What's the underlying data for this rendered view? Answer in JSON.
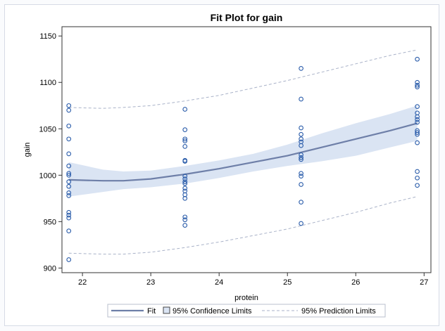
{
  "chart_data": {
    "type": "scatter",
    "title": "Fit Plot for gain",
    "xlabel": "protein",
    "ylabel": "gain",
    "xlim": [
      21.7,
      27.1
    ],
    "ylim": [
      895,
      1160
    ],
    "xticks": [
      22,
      23,
      24,
      25,
      26,
      27
    ],
    "yticks": [
      900,
      950,
      1000,
      1050,
      1100,
      1150
    ],
    "grid": false,
    "legend_position": "bottom",
    "colors": {
      "points": "#2a5caa",
      "fit": "#6e7fa8",
      "confidence_band": "#dae4f3",
      "prediction_limits": "#a9b2c8"
    },
    "points": [
      {
        "x": 21.8,
        "y": 1075
      },
      {
        "x": 21.8,
        "y": 1070
      },
      {
        "x": 21.8,
        "y": 1053
      },
      {
        "x": 21.8,
        "y": 1039
      },
      {
        "x": 21.8,
        "y": 1023
      },
      {
        "x": 21.8,
        "y": 1010
      },
      {
        "x": 21.8,
        "y": 1002
      },
      {
        "x": 21.8,
        "y": 1000
      },
      {
        "x": 21.8,
        "y": 993
      },
      {
        "x": 21.8,
        "y": 988
      },
      {
        "x": 21.8,
        "y": 981
      },
      {
        "x": 21.8,
        "y": 978
      },
      {
        "x": 21.8,
        "y": 960
      },
      {
        "x": 21.8,
        "y": 957
      },
      {
        "x": 21.8,
        "y": 954
      },
      {
        "x": 21.8,
        "y": 940
      },
      {
        "x": 21.8,
        "y": 909
      },
      {
        "x": 23.5,
        "y": 1071
      },
      {
        "x": 23.5,
        "y": 1049
      },
      {
        "x": 23.5,
        "y": 1039
      },
      {
        "x": 23.5,
        "y": 1037
      },
      {
        "x": 23.5,
        "y": 1031
      },
      {
        "x": 23.5,
        "y": 1016
      },
      {
        "x": 23.5,
        "y": 1015
      },
      {
        "x": 23.5,
        "y": 999
      },
      {
        "x": 23.5,
        "y": 996
      },
      {
        "x": 23.5,
        "y": 993
      },
      {
        "x": 23.5,
        "y": 991
      },
      {
        "x": 23.5,
        "y": 986
      },
      {
        "x": 23.5,
        "y": 983
      },
      {
        "x": 23.5,
        "y": 979
      },
      {
        "x": 23.5,
        "y": 975
      },
      {
        "x": 23.5,
        "y": 955
      },
      {
        "x": 23.5,
        "y": 952
      },
      {
        "x": 23.5,
        "y": 946
      },
      {
        "x": 25.2,
        "y": 1115
      },
      {
        "x": 25.2,
        "y": 1082
      },
      {
        "x": 25.2,
        "y": 1051
      },
      {
        "x": 25.2,
        "y": 1044
      },
      {
        "x": 25.2,
        "y": 1039
      },
      {
        "x": 25.2,
        "y": 1036
      },
      {
        "x": 25.2,
        "y": 1032
      },
      {
        "x": 25.2,
        "y": 1022
      },
      {
        "x": 25.2,
        "y": 1019
      },
      {
        "x": 25.2,
        "y": 1017
      },
      {
        "x": 25.2,
        "y": 1002
      },
      {
        "x": 25.2,
        "y": 999
      },
      {
        "x": 25.2,
        "y": 990
      },
      {
        "x": 25.2,
        "y": 971
      },
      {
        "x": 25.2,
        "y": 948
      },
      {
        "x": 26.9,
        "y": 1125
      },
      {
        "x": 26.9,
        "y": 1100
      },
      {
        "x": 26.9,
        "y": 1097
      },
      {
        "x": 26.9,
        "y": 1095
      },
      {
        "x": 26.9,
        "y": 1074
      },
      {
        "x": 26.9,
        "y": 1067
      },
      {
        "x": 26.9,
        "y": 1063
      },
      {
        "x": 26.9,
        "y": 1060
      },
      {
        "x": 26.9,
        "y": 1057
      },
      {
        "x": 26.9,
        "y": 1048
      },
      {
        "x": 26.9,
        "y": 1046
      },
      {
        "x": 26.9,
        "y": 1044
      },
      {
        "x": 26.9,
        "y": 1035
      },
      {
        "x": 26.9,
        "y": 1004
      },
      {
        "x": 26.9,
        "y": 997
      },
      {
        "x": 26.9,
        "y": 989
      }
    ],
    "fit": {
      "x": [
        21.8,
        22.3,
        22.6,
        23.0,
        23.5,
        24.0,
        24.5,
        25.0,
        25.5,
        26.0,
        26.5,
        26.9
      ],
      "y": [
        995,
        994,
        994,
        996,
        1001,
        1007,
        1014,
        1021,
        1030,
        1039,
        1048,
        1056
      ]
    },
    "confidence_band": {
      "x": [
        21.8,
        22.3,
        22.6,
        23.0,
        23.5,
        24.0,
        24.5,
        25.0,
        25.5,
        26.0,
        26.5,
        26.9
      ],
      "upper": [
        1014,
        1006,
        1004,
        1005,
        1010,
        1016,
        1023,
        1033,
        1045,
        1056,
        1066,
        1075
      ],
      "lower": [
        977,
        982,
        985,
        987,
        991,
        997,
        1004,
        1010,
        1015,
        1021,
        1030,
        1037
      ]
    },
    "prediction_limits": {
      "x": [
        21.8,
        22.3,
        22.6,
        23.0,
        23.5,
        24.0,
        24.5,
        25.0,
        25.5,
        26.0,
        26.5,
        26.9
      ],
      "upper": [
        1073,
        1072,
        1073,
        1075,
        1080,
        1086,
        1094,
        1102,
        1111,
        1120,
        1129,
        1135
      ],
      "lower": [
        916,
        915,
        915,
        917,
        922,
        928,
        935,
        942,
        951,
        960,
        970,
        977
      ]
    },
    "legend": {
      "fit": "Fit",
      "confidence": "95% Confidence Limits",
      "prediction": "95% Prediction Limits"
    }
  }
}
